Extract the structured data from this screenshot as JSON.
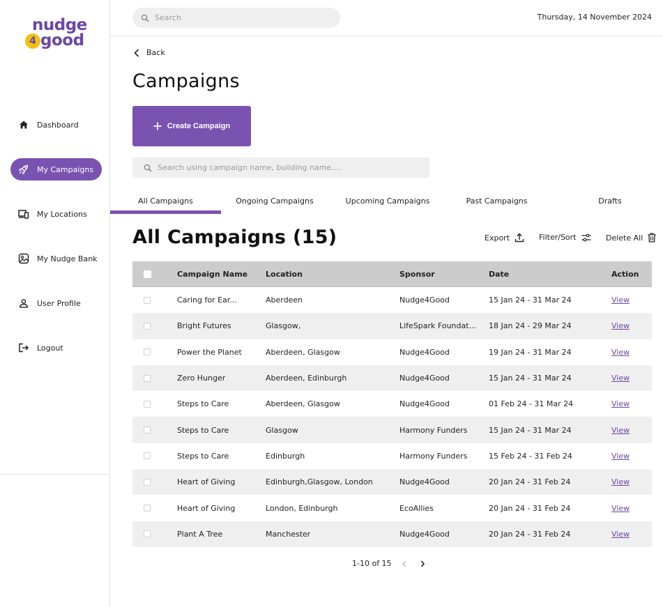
{
  "brand": {
    "line1": "nudge",
    "digit": "4",
    "line2": "good"
  },
  "sidebar": {
    "items": [
      {
        "label": "Dashboard",
        "icon": "home-icon"
      },
      {
        "label": "My Campaigns",
        "icon": "rocket-icon",
        "active": true
      },
      {
        "label": "My Locations",
        "icon": "devices-icon"
      },
      {
        "label": "My Nudge Bank",
        "icon": "image-bank-icon"
      },
      {
        "label": "User Profile",
        "icon": "user-icon"
      },
      {
        "label": "Logout",
        "icon": "logout-icon"
      }
    ]
  },
  "header": {
    "search_placeholder": "Search",
    "date": "Thursday, 14 November 2024"
  },
  "main": {
    "back_label": "Back",
    "title": "Campaigns",
    "create_label": "Create Campaign",
    "search_placeholder": "Search using campaign name, building name....",
    "tabs": [
      "All Campaigns",
      "Ongoing Campaigns",
      "Upcoming Campaigns",
      "Past Campaigns",
      "Drafts"
    ],
    "section_title": "All Campaigns (15)",
    "tools": {
      "export": "Export",
      "filter": "Filter/Sort",
      "delete_all": "Delete All"
    }
  },
  "table": {
    "columns": [
      "Campaign Name",
      "Location",
      "Sponsor",
      "Date",
      "Action"
    ],
    "rows": [
      {
        "name": "Caring for Ear...",
        "location": "Aberdeen",
        "sponsor": "Nudge4Good",
        "date": "15 Jan 24 - 31 Mar 24",
        "action": "View"
      },
      {
        "name": "Bright Futures",
        "location": "Glasgow,",
        "sponsor": "LifeSpark Foundat...",
        "date": "18 Jan 24 - 29 Mar 24",
        "action": "View"
      },
      {
        "name": "Power the Planet",
        "location": "Aberdeen, Glasgow",
        "sponsor": "Nudge4Good",
        "date": "19 Jan 24 - 31 Mar 24",
        "action": "View"
      },
      {
        "name": "Zero Hunger",
        "location": "Aberdeen, Edinburgh",
        "sponsor": "Nudge4Good",
        "date": "15 Jan 24 - 31 Mar 24",
        "action": "View"
      },
      {
        "name": "Steps to Care",
        "location": "Aberdeen, Glasgow",
        "sponsor": "Nudge4Good",
        "date": "01 Feb 24 - 31 Mar 24",
        "action": "View"
      },
      {
        "name": "Steps to Care",
        "location": "Glasgow",
        "sponsor": "Harmony Funders",
        "date": "15 Jan 24 - 31 Mar 24",
        "action": "View"
      },
      {
        "name": "Steps to Care",
        "location": "Edinburgh",
        "sponsor": "Harmony Funders",
        "date": "15 Feb 24 - 31 Feb 24",
        "action": "View"
      },
      {
        "name": "Heart of Giving",
        "location": "Edinburgh,Glasgow, London",
        "sponsor": "Nudge4Good",
        "date": "20 Jan 24 - 31 Feb 24",
        "action": "View"
      },
      {
        "name": "Heart of Giving",
        "location": "London, Edinburgh",
        "sponsor": "EcoAllies",
        "date": "20 Jan 24 - 31 Feb 24",
        "action": "View"
      },
      {
        "name": "Plant A Tree",
        "location": "Manchester",
        "sponsor": "Nudge4Good",
        "date": "20 Jan 24 - 31 Feb 24",
        "action": "View"
      }
    ]
  },
  "pagination": {
    "range": "1-10 of 15"
  },
  "colors": {
    "accent": "#7a52b0",
    "logo_yellow": "#f2c114",
    "row_alt": "#efefef",
    "header_bg": "#cccccc"
  }
}
